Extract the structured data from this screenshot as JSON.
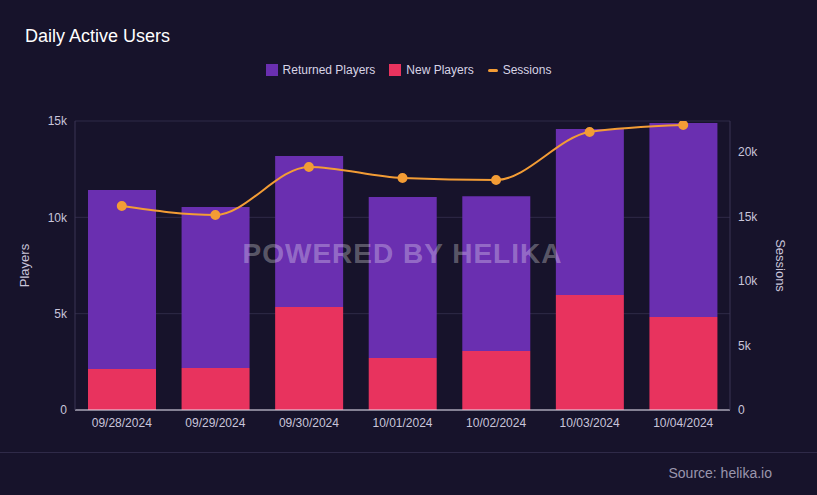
{
  "chart_data": {
    "type": "bar",
    "title": "Daily Active Users",
    "watermark": "POWERED BY HELIKA",
    "source": "Source: helika.io",
    "categories": [
      "09/28/2024",
      "09/29/2024",
      "09/30/2024",
      "10/01/2024",
      "10/02/2024",
      "10/03/2024",
      "10/04/2024"
    ],
    "stacked": true,
    "grid": true,
    "legend": "top",
    "y_label": "Players",
    "y2_label": "Sessions",
    "ylim": [
      0,
      15000
    ],
    "yticks": [
      0,
      {
        "value": 5000,
        "label": "5k"
      },
      {
        "value": 10000,
        "label": "10k"
      },
      {
        "value": 15000,
        "label": "15k"
      }
    ],
    "y2lim": [
      0,
      22400
    ],
    "y2ticks": [
      0,
      {
        "value": 5000,
        "label": "5k"
      },
      {
        "value": 10000,
        "label": "10k"
      },
      {
        "value": 15000,
        "label": "15k"
      },
      {
        "value": 20000,
        "label": "20k"
      }
    ],
    "series": [
      {
        "name": "Returned Players",
        "type": "bar",
        "color": "#6a2fb0",
        "values": [
          9290,
          8350,
          7830,
          8350,
          8040,
          8610,
          10060
        ]
      },
      {
        "name": "New Players",
        "type": "bar",
        "color": "#e8335e",
        "values": [
          2130,
          2180,
          5350,
          2700,
          3060,
          5970,
          4830
        ]
      },
      {
        "name": "Sessions",
        "type": "line",
        "axis": "y2",
        "color": "#f39c35",
        "marker": "circle",
        "values": [
          15810,
          15120,
          18840,
          17980,
          17830,
          21550,
          22090
        ]
      }
    ]
  }
}
